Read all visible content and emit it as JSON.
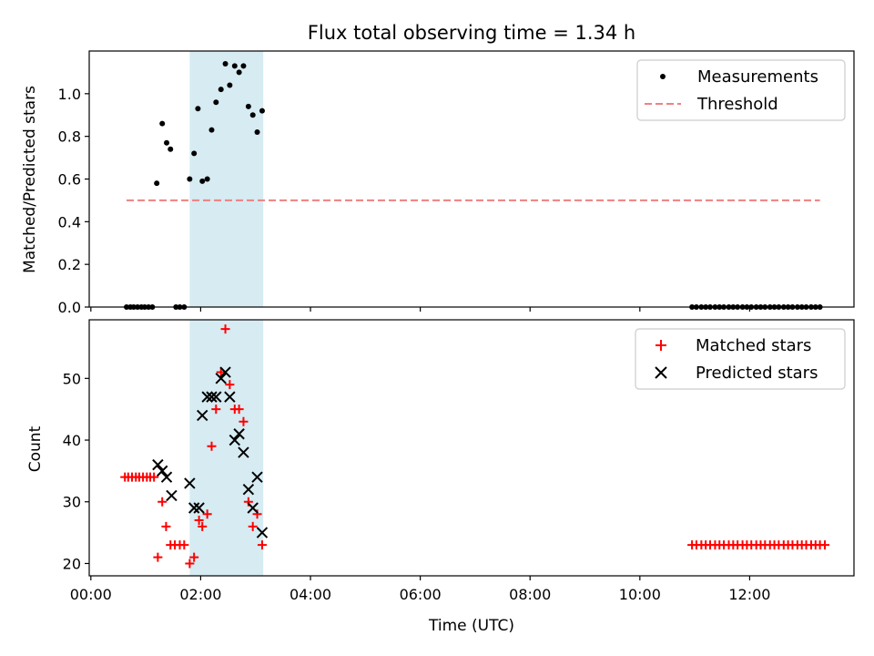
{
  "chart_data": [
    {
      "type": "scatter",
      "title": "Flux total observing time = 1.34 h",
      "ylabel": "Matched/Predicted stars",
      "xlim_hours": [
        -0.03,
        13.9
      ],
      "ylim": [
        0,
        1.2
      ],
      "yticks": [
        "0.0",
        "0.2",
        "0.4",
        "0.6",
        "0.8",
        "1.0"
      ],
      "grid": false,
      "legend": "top-right",
      "shaded_span_hours": [
        1.8,
        3.14
      ],
      "shade_color": "#add8e6",
      "series": [
        {
          "name": "Measurements",
          "marker": "dot",
          "color": "#000000",
          "x_hours": [
            0.65,
            0.72,
            0.78,
            0.85,
            0.92,
            0.98,
            1.05,
            1.12,
            1.55,
            1.62,
            1.7,
            1.2,
            1.3,
            1.38,
            1.45,
            1.8,
            1.88,
            1.95,
            2.03,
            2.12,
            2.2,
            2.28,
            2.37,
            2.45,
            2.53,
            2.62,
            2.7,
            2.78,
            2.87,
            2.95,
            3.03,
            3.12,
            10.95,
            11.03,
            11.12,
            11.2,
            11.28,
            11.37,
            11.45,
            11.53,
            11.62,
            11.7,
            11.78,
            11.87,
            11.95,
            12.03,
            12.12,
            12.2,
            12.28,
            12.37,
            12.45,
            12.53,
            12.62,
            12.7,
            12.78,
            12.87,
            12.95,
            13.03,
            13.12,
            13.2,
            13.28
          ],
          "y": [
            0,
            0,
            0,
            0,
            0,
            0,
            0,
            0,
            0,
            0,
            0,
            0.58,
            0.86,
            0.77,
            0.74,
            0.6,
            0.72,
            0.93,
            0.59,
            0.6,
            0.83,
            0.96,
            1.02,
            1.14,
            1.04,
            1.13,
            1.1,
            1.13,
            0.94,
            0.9,
            0.82,
            0.92,
            0,
            0,
            0,
            0,
            0,
            0,
            0,
            0,
            0,
            0,
            0,
            0,
            0,
            0,
            0,
            0,
            0,
            0,
            0,
            0,
            0,
            0,
            0,
            0,
            0,
            0,
            0,
            0,
            0
          ]
        },
        {
          "name": "Threshold",
          "style": "dashed",
          "color": "#f08080",
          "x_hours": [
            0.65,
            13.28
          ],
          "y": [
            0.5,
            0.5
          ]
        }
      ]
    },
    {
      "type": "scatter",
      "xlabel": "Time (UTC)",
      "ylabel": "Count",
      "xlim_hours": [
        -0.03,
        13.9
      ],
      "ylim": [
        18,
        59.5
      ],
      "yticks": [
        "20",
        "30",
        "40",
        "50"
      ],
      "xticks": [
        "00:00",
        "02:00",
        "04:00",
        "06:00",
        "08:00",
        "10:00",
        "12:00"
      ],
      "grid": false,
      "legend": "top-right",
      "shaded_span_hours": [
        1.8,
        3.14
      ],
      "shade_color": "#add8e6",
      "series": [
        {
          "name": "Matched stars",
          "marker": "plus",
          "color": "#ff0000",
          "x_hours": [
            0.62,
            0.68,
            0.75,
            0.82,
            0.88,
            0.95,
            1.02,
            1.08,
            1.15,
            1.22,
            1.3,
            1.37,
            1.45,
            1.53,
            1.62,
            1.7,
            1.8,
            1.88,
            1.97,
            2.03,
            2.12,
            2.2,
            2.28,
            2.37,
            2.45,
            2.53,
            2.62,
            2.7,
            2.78,
            2.87,
            2.95,
            3.03,
            3.12,
            10.95,
            11.03,
            11.12,
            11.2,
            11.28,
            11.37,
            11.45,
            11.53,
            11.62,
            11.7,
            11.78,
            11.87,
            11.95,
            12.03,
            12.12,
            12.2,
            12.28,
            12.37,
            12.45,
            12.53,
            12.62,
            12.7,
            12.78,
            12.87,
            12.95,
            13.03,
            13.12,
            13.2,
            13.28,
            13.37
          ],
          "y": [
            34,
            34,
            34,
            34,
            34,
            34,
            34,
            34,
            34,
            21,
            30,
            26,
            23,
            23,
            23,
            23,
            20,
            21,
            27,
            26,
            28,
            39,
            45,
            51,
            58,
            49,
            45,
            45,
            43,
            30,
            26,
            28,
            23,
            23,
            23,
            23,
            23,
            23,
            23,
            23,
            23,
            23,
            23,
            23,
            23,
            23,
            23,
            23,
            23,
            23,
            23,
            23,
            23,
            23,
            23,
            23,
            23,
            23,
            23,
            23,
            23,
            23,
            23
          ]
        },
        {
          "name": "Predicted stars",
          "marker": "x",
          "color": "#000000",
          "x_hours": [
            1.22,
            1.3,
            1.38,
            1.47,
            1.8,
            1.88,
            1.97,
            2.03,
            2.12,
            2.2,
            2.28,
            2.37,
            2.45,
            2.53,
            2.62,
            2.7,
            2.78,
            2.87,
            2.95,
            3.03,
            3.12
          ],
          "y": [
            36,
            35,
            34,
            31,
            33,
            29,
            29,
            44,
            47,
            47,
            47,
            50,
            51,
            47,
            40,
            41,
            38,
            32,
            29,
            34,
            25
          ]
        }
      ]
    }
  ]
}
